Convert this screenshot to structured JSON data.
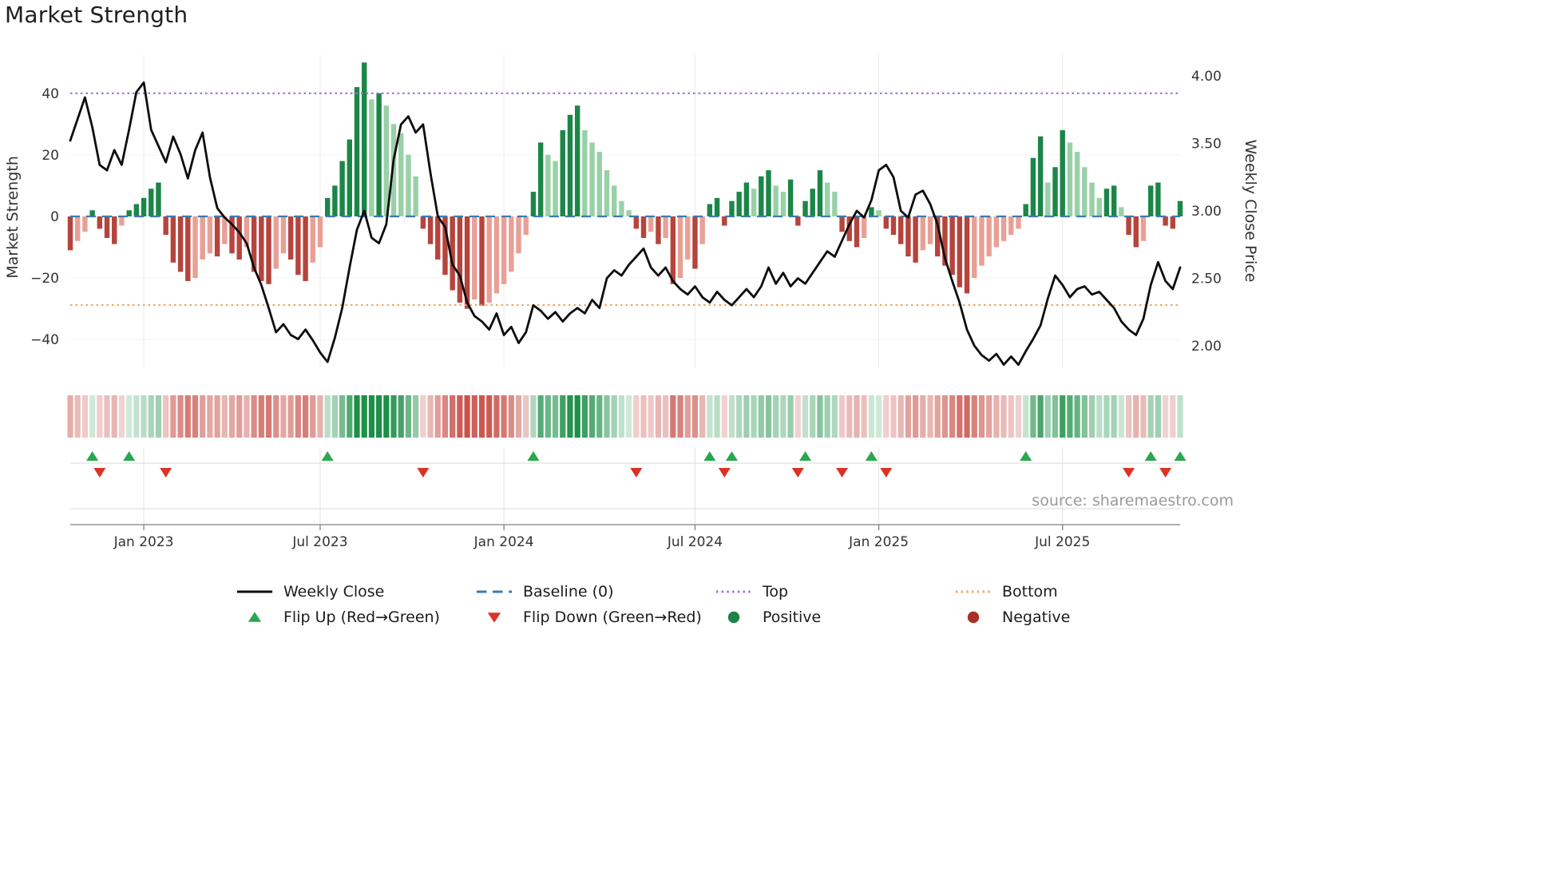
{
  "title": "Market Strength",
  "source": "source: sharemaestro.com",
  "axes": {
    "left": {
      "label": "Market Strength",
      "ticks": [
        40,
        20,
        0,
        -20,
        -40
      ],
      "tick_labels": [
        "40",
        "20",
        "0",
        "−20",
        "−40"
      ]
    },
    "right": {
      "label": "Weekly Close Price",
      "ticks": [
        4.0,
        3.5,
        3.0,
        2.5,
        2.0
      ],
      "tick_labels": [
        "4.00",
        "3.50",
        "3.00",
        "2.50",
        "2.00"
      ]
    },
    "x": {
      "tick_labels": [
        "Jan 2023",
        "Jul 2023",
        "Jan 2024",
        "Jul 2024",
        "Jan 2025",
        "Jul 2025"
      ],
      "tick_indices": [
        10,
        34,
        59,
        85,
        110,
        135
      ]
    }
  },
  "legend": {
    "row1": [
      {
        "name": "weekly-close",
        "label": "Weekly Close",
        "swatch": "solid-line",
        "color": "#0d0d0d"
      },
      {
        "name": "baseline",
        "label": "Baseline (0)",
        "swatch": "dashed-line",
        "color": "#3d7ab0"
      },
      {
        "name": "top",
        "label": "Top",
        "swatch": "dotted-line",
        "color": "#9a70d8"
      },
      {
        "name": "bottom",
        "label": "Bottom",
        "swatch": "dotted-line",
        "color": "#f2a45c"
      }
    ],
    "row2": [
      {
        "name": "flip-up",
        "label": "Flip Up (Red→Green)",
        "swatch": "triangle-up",
        "color": "#2aa84f"
      },
      {
        "name": "flip-down",
        "label": "Flip Down (Green→Red)",
        "swatch": "triangle-down",
        "color": "#dc3226"
      },
      {
        "name": "positive",
        "label": "Positive",
        "swatch": "circle",
        "color": "#1e8449"
      },
      {
        "name": "negative",
        "label": "Negative",
        "swatch": "circle",
        "color": "#a93226"
      }
    ]
  },
  "chart_data": {
    "type": "combo-bar-line",
    "title": "Market Strength",
    "ylabel_left": "Market Strength",
    "ylabel_right": "Weekly Close Price",
    "ylim_left": [
      -52,
      53
    ],
    "ylim_right": [
      1.78,
      4.05
    ],
    "baseline": 0,
    "top_level": 40,
    "bottom_level": -28.8,
    "frequency": "weekly",
    "x_range": [
      "Oct 2022",
      "Oct 2025"
    ],
    "bars": [
      -11,
      -8,
      -5,
      2,
      -4,
      -7,
      -9,
      -3,
      2,
      4,
      6,
      9,
      11,
      -6,
      -15,
      -18,
      -21,
      -20,
      -14,
      -12,
      -13,
      -9,
      -12,
      -14,
      -10,
      -18,
      -21,
      -22,
      -17,
      -12,
      -14,
      -19,
      -21,
      -15,
      -10,
      6,
      10,
      18,
      25,
      42,
      50,
      38,
      40,
      36,
      30,
      27,
      20,
      13,
      -4,
      -9,
      -14,
      -19,
      -24,
      -28,
      -30,
      -27,
      -29,
      -28,
      -25,
      -22,
      -18,
      -12,
      -6,
      8,
      24,
      20,
      18,
      28,
      33,
      36,
      28,
      24,
      21,
      15,
      10,
      5,
      2,
      -4,
      -7,
      -5,
      -9,
      -7,
      -22,
      -20,
      -14,
      -17,
      -9,
      4,
      6,
      -3,
      5,
      8,
      11,
      9,
      13,
      15,
      10,
      8,
      12,
      -3,
      5,
      9,
      15,
      11,
      8,
      -5,
      -8,
      -10,
      -7,
      3,
      2,
      -4,
      -6,
      -9,
      -13,
      -15,
      -11,
      -9,
      -13,
      -16,
      -19,
      -23,
      -25,
      -20,
      -16,
      -13,
      -10,
      -8,
      -6,
      -4,
      4,
      19,
      26,
      11,
      16,
      28,
      24,
      21,
      16,
      11,
      6,
      9,
      10,
      3,
      -6,
      -10,
      -8,
      10,
      11,
      -3,
      -4,
      5
    ],
    "close": [
      3.52,
      3.68,
      3.84,
      3.62,
      3.34,
      3.3,
      3.45,
      3.34,
      3.6,
      3.88,
      3.95,
      3.6,
      3.48,
      3.36,
      3.55,
      3.42,
      3.24,
      3.45,
      3.58,
      3.25,
      3.02,
      2.95,
      2.9,
      2.84,
      2.76,
      2.58,
      2.45,
      2.28,
      2.1,
      2.16,
      2.08,
      2.05,
      2.12,
      2.04,
      1.95,
      1.88,
      2.06,
      2.28,
      2.58,
      2.86,
      3.0,
      2.8,
      2.76,
      2.9,
      3.38,
      3.64,
      3.7,
      3.58,
      3.64,
      3.28,
      2.96,
      2.88,
      2.6,
      2.52,
      2.32,
      2.22,
      2.18,
      2.12,
      2.24,
      2.08,
      2.14,
      2.02,
      2.1,
      2.3,
      2.26,
      2.2,
      2.25,
      2.18,
      2.24,
      2.28,
      2.24,
      2.34,
      2.28,
      2.5,
      2.56,
      2.52,
      2.6,
      2.66,
      2.72,
      2.58,
      2.52,
      2.58,
      2.48,
      2.42,
      2.38,
      2.44,
      2.36,
      2.32,
      2.4,
      2.34,
      2.3,
      2.36,
      2.42,
      2.36,
      2.44,
      2.58,
      2.46,
      2.54,
      2.44,
      2.5,
      2.46,
      2.54,
      2.62,
      2.7,
      2.66,
      2.78,
      2.9,
      3.0,
      2.95,
      3.08,
      3.3,
      3.34,
      3.25,
      3.0,
      2.95,
      3.12,
      3.15,
      3.05,
      2.9,
      2.65,
      2.48,
      2.32,
      2.12,
      2.0,
      1.93,
      1.89,
      1.94,
      1.86,
      1.92,
      1.86,
      1.96,
      2.05,
      2.15,
      2.35,
      2.52,
      2.45,
      2.36,
      2.42,
      2.44,
      2.38,
      2.4,
      2.34,
      2.28,
      2.18,
      2.12,
      2.08,
      2.2,
      2.45,
      2.62,
      2.48,
      2.42,
      2.58
    ],
    "flip_up_indices": [
      3,
      8,
      35,
      63,
      87,
      90,
      100,
      109,
      130,
      147,
      151
    ],
    "flip_down_indices": [
      4,
      13,
      48,
      77,
      89,
      99,
      105,
      111,
      144,
      149
    ],
    "colors": {
      "close": "#0d0d0d",
      "baseline": "#3d7ab0",
      "top": "#9a70d8",
      "bottom": "#f2a45c",
      "pos_dark": "#1b8647",
      "pos_light": "#99d1a7",
      "neg_dark": "#b5443c",
      "neg_light": "#e8a096",
      "heat_pos": "#1d9048",
      "heat_neg": "#c24038",
      "flip_up": "#2aa84f",
      "flip_down": "#dc3226"
    }
  }
}
